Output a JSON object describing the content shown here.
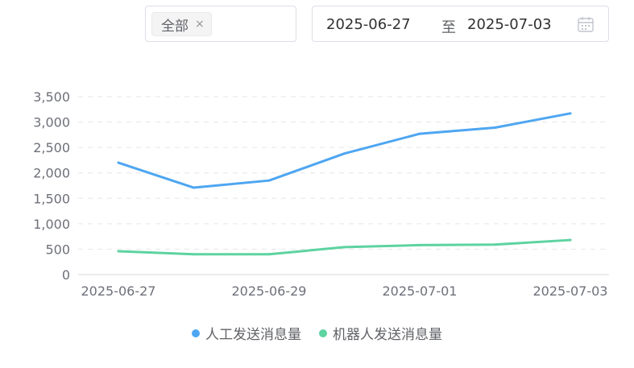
{
  "filter": {
    "tag_label": "全部",
    "close_symbol": "×"
  },
  "date_range": {
    "start": "2025-06-27",
    "separator": "至",
    "end": "2025-07-03"
  },
  "colors": {
    "series_human": "#4ea6f1",
    "series_robot": "#5dd3a0",
    "grid": "#e6e6e6",
    "axis_text": "#6e7079"
  },
  "chart_data": {
    "type": "line",
    "x": [
      "2025-06-27",
      "2025-06-28",
      "2025-06-29",
      "2025-06-30",
      "2025-07-01",
      "2025-07-02",
      "2025-07-03"
    ],
    "x_tick_labels": [
      "2025-06-27",
      "2025-06-29",
      "2025-07-01",
      "2025-07-03"
    ],
    "y_ticks": [
      "0",
      "500",
      "1,000",
      "1,500",
      "2,000",
      "2,500",
      "3,000",
      "3,500"
    ],
    "ylim": [
      0,
      3500
    ],
    "grid": "horizontal dashed",
    "legend_position": "bottom-center",
    "series": [
      {
        "name": "人工发送消息量",
        "values": [
          2200,
          1710,
          1850,
          2380,
          2770,
          2890,
          3170
        ]
      },
      {
        "name": "机器人发送消息量",
        "values": [
          460,
          400,
          400,
          540,
          580,
          590,
          680
        ]
      }
    ]
  }
}
